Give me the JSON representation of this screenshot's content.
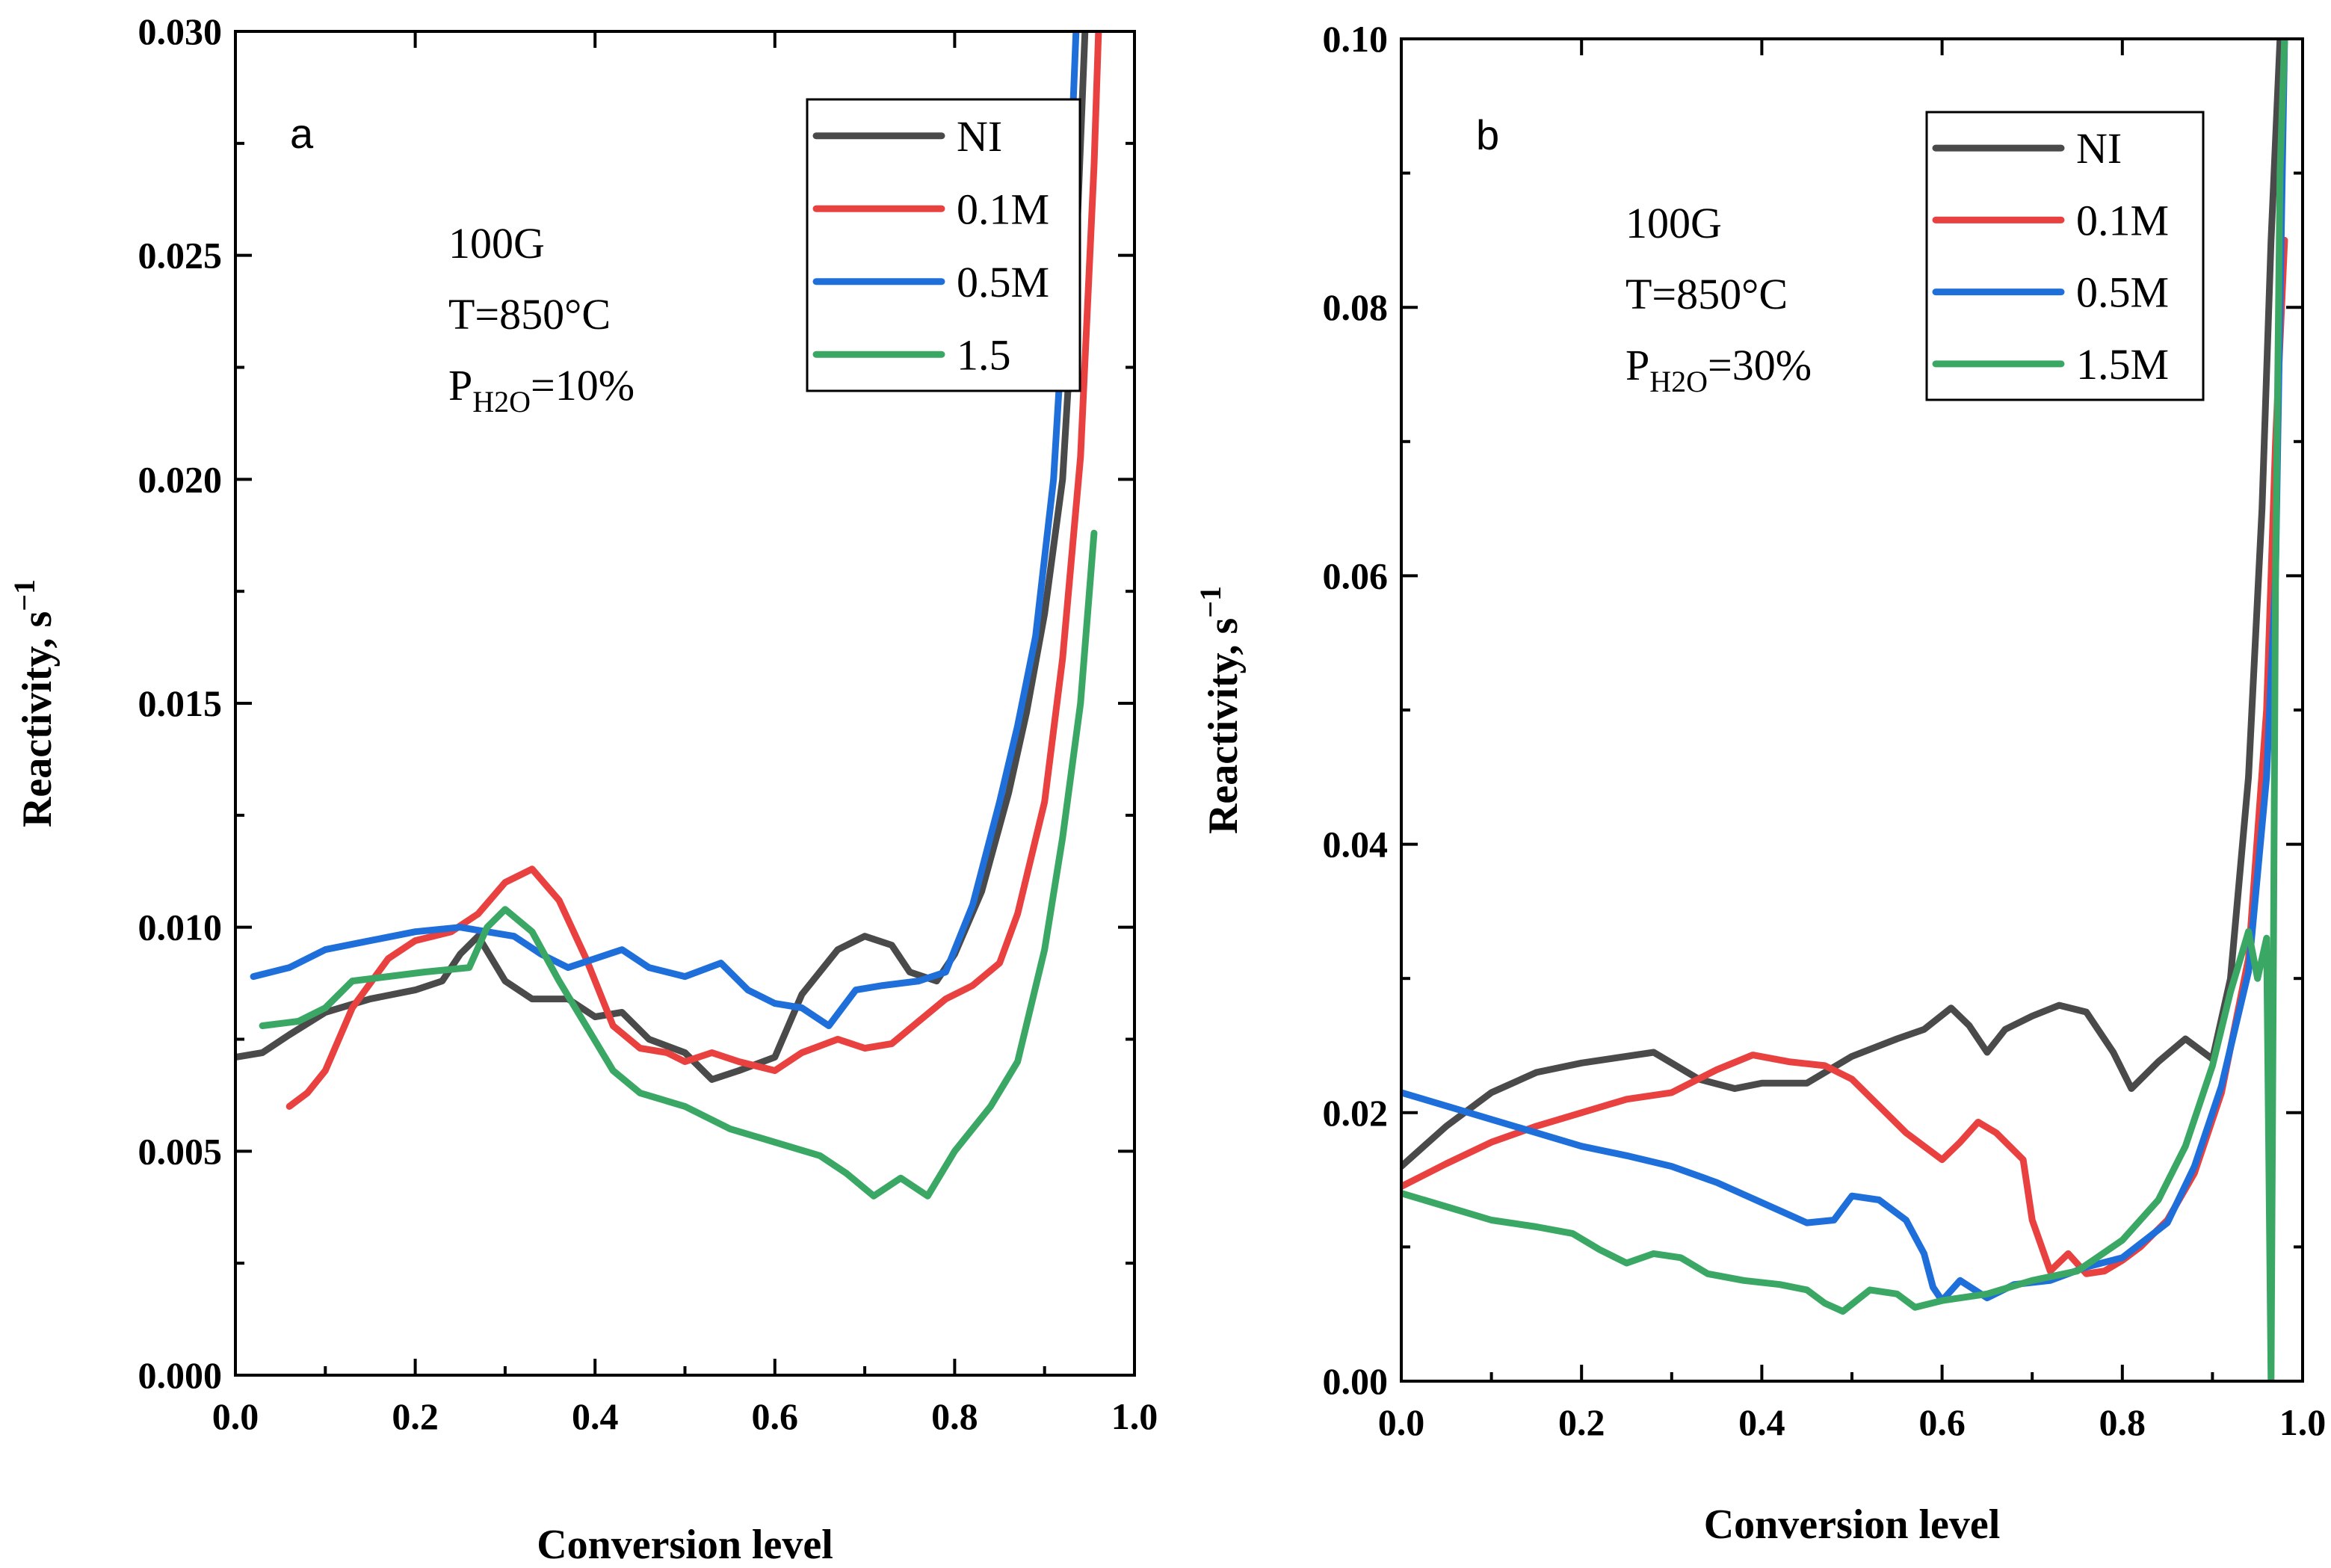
{
  "chart_data": [
    {
      "panel_label": "a",
      "type": "line",
      "xlabel": "Conversion level",
      "ylabel": "Reactivity, s",
      "ylabel_sup": "−1",
      "xlim": [
        0.0,
        1.0
      ],
      "ylim": [
        0.0,
        0.03
      ],
      "x_ticks": [
        "0.0",
        "0.2",
        "0.4",
        "0.6",
        "0.8",
        "1.0"
      ],
      "y_ticks": [
        "0.000",
        "0.005",
        "0.010",
        "0.015",
        "0.020",
        "0.025",
        "0.030"
      ],
      "annotation": {
        "line1": "100G",
        "line2": "T=850°C",
        "line3_main": "P",
        "line3_sub": "H2O",
        "line3_rest": "=10%"
      },
      "legend_position": "top-right",
      "series": [
        {
          "name": "NI",
          "color": "#4a4a4a",
          "points": [
            [
              0.0,
              0.0071
            ],
            [
              0.03,
              0.0072
            ],
            [
              0.06,
              0.0076
            ],
            [
              0.1,
              0.0081
            ],
            [
              0.15,
              0.0084
            ],
            [
              0.2,
              0.0086
            ],
            [
              0.23,
              0.0088
            ],
            [
              0.25,
              0.0094
            ],
            [
              0.27,
              0.0098
            ],
            [
              0.3,
              0.0088
            ],
            [
              0.33,
              0.0084
            ],
            [
              0.37,
              0.0084
            ],
            [
              0.4,
              0.008
            ],
            [
              0.43,
              0.0081
            ],
            [
              0.46,
              0.0075
            ],
            [
              0.5,
              0.0072
            ],
            [
              0.53,
              0.0066
            ],
            [
              0.56,
              0.0068
            ],
            [
              0.6,
              0.0071
            ],
            [
              0.63,
              0.0085
            ],
            [
              0.67,
              0.0095
            ],
            [
              0.7,
              0.0098
            ],
            [
              0.73,
              0.0096
            ],
            [
              0.75,
              0.009
            ],
            [
              0.78,
              0.0088
            ],
            [
              0.8,
              0.0094
            ],
            [
              0.83,
              0.0108
            ],
            [
              0.86,
              0.013
            ],
            [
              0.88,
              0.0148
            ],
            [
              0.9,
              0.017
            ],
            [
              0.92,
              0.02
            ],
            [
              0.935,
              0.025
            ],
            [
              0.945,
              0.03
            ]
          ]
        },
        {
          "name": "0.1M",
          "color": "#e8413f",
          "points": [
            [
              0.06,
              0.006
            ],
            [
              0.08,
              0.0063
            ],
            [
              0.1,
              0.0068
            ],
            [
              0.13,
              0.0082
            ],
            [
              0.17,
              0.0093
            ],
            [
              0.2,
              0.0097
            ],
            [
              0.24,
              0.0099
            ],
            [
              0.27,
              0.0103
            ],
            [
              0.3,
              0.011
            ],
            [
              0.33,
              0.0113
            ],
            [
              0.36,
              0.0106
            ],
            [
              0.39,
              0.0093
            ],
            [
              0.42,
              0.0078
            ],
            [
              0.45,
              0.0073
            ],
            [
              0.48,
              0.0072
            ],
            [
              0.5,
              0.007
            ],
            [
              0.53,
              0.0072
            ],
            [
              0.56,
              0.007
            ],
            [
              0.6,
              0.0068
            ],
            [
              0.63,
              0.0072
            ],
            [
              0.67,
              0.0075
            ],
            [
              0.7,
              0.0073
            ],
            [
              0.73,
              0.0074
            ],
            [
              0.76,
              0.0079
            ],
            [
              0.79,
              0.0084
            ],
            [
              0.82,
              0.0087
            ],
            [
              0.85,
              0.0092
            ],
            [
              0.87,
              0.0103
            ],
            [
              0.9,
              0.0128
            ],
            [
              0.92,
              0.016
            ],
            [
              0.94,
              0.0205
            ],
            [
              0.955,
              0.027
            ],
            [
              0.96,
              0.03
            ]
          ]
        },
        {
          "name": "0.5M",
          "color": "#1f6fdb",
          "points": [
            [
              0.02,
              0.0089
            ],
            [
              0.06,
              0.0091
            ],
            [
              0.1,
              0.0095
            ],
            [
              0.15,
              0.0097
            ],
            [
              0.2,
              0.0099
            ],
            [
              0.25,
              0.01
            ],
            [
              0.28,
              0.0099
            ],
            [
              0.31,
              0.0098
            ],
            [
              0.34,
              0.0094
            ],
            [
              0.37,
              0.0091
            ],
            [
              0.4,
              0.0093
            ],
            [
              0.43,
              0.0095
            ],
            [
              0.46,
              0.0091
            ],
            [
              0.5,
              0.0089
            ],
            [
              0.54,
              0.0092
            ],
            [
              0.57,
              0.0086
            ],
            [
              0.6,
              0.0083
            ],
            [
              0.63,
              0.0082
            ],
            [
              0.66,
              0.0078
            ],
            [
              0.69,
              0.0086
            ],
            [
              0.72,
              0.0087
            ],
            [
              0.76,
              0.0088
            ],
            [
              0.79,
              0.009
            ],
            [
              0.82,
              0.0105
            ],
            [
              0.85,
              0.0128
            ],
            [
              0.87,
              0.0145
            ],
            [
              0.89,
              0.0165
            ],
            [
              0.91,
              0.02
            ],
            [
              0.925,
              0.025
            ],
            [
              0.935,
              0.03
            ]
          ]
        },
        {
          "name": "1.5",
          "color": "#3aa864",
          "points": [
            [
              0.03,
              0.0078
            ],
            [
              0.07,
              0.0079
            ],
            [
              0.1,
              0.0082
            ],
            [
              0.13,
              0.0088
            ],
            [
              0.17,
              0.0089
            ],
            [
              0.21,
              0.009
            ],
            [
              0.26,
              0.0091
            ],
            [
              0.28,
              0.01
            ],
            [
              0.3,
              0.0104
            ],
            [
              0.33,
              0.0099
            ],
            [
              0.36,
              0.0088
            ],
            [
              0.39,
              0.0078
            ],
            [
              0.42,
              0.0068
            ],
            [
              0.45,
              0.0063
            ],
            [
              0.5,
              0.006
            ],
            [
              0.55,
              0.0055
            ],
            [
              0.6,
              0.0052
            ],
            [
              0.65,
              0.0049
            ],
            [
              0.68,
              0.0045
            ],
            [
              0.71,
              0.004
            ],
            [
              0.74,
              0.0044
            ],
            [
              0.77,
              0.004
            ],
            [
              0.8,
              0.005
            ],
            [
              0.84,
              0.006
            ],
            [
              0.87,
              0.007
            ],
            [
              0.9,
              0.0095
            ],
            [
              0.92,
              0.012
            ],
            [
              0.94,
              0.015
            ],
            [
              0.955,
              0.0188
            ]
          ]
        }
      ]
    },
    {
      "panel_label": "b",
      "type": "line",
      "xlabel": "Conversion level",
      "ylabel": "Reactivity, s",
      "ylabel_sup": "−1",
      "xlim": [
        0.0,
        1.0
      ],
      "ylim": [
        0.0,
        0.1
      ],
      "x_ticks": [
        "0.0",
        "0.2",
        "0.4",
        "0.6",
        "0.8",
        "1.0"
      ],
      "y_ticks": [
        "0.00",
        "0.02",
        "0.04",
        "0.06",
        "0.08",
        "0.10"
      ],
      "annotation": {
        "line1": "100G",
        "line2": "T=850°C",
        "line3_main": "P",
        "line3_sub": "H2O",
        "line3_rest": "=30%"
      },
      "legend_position": "top-right",
      "series": [
        {
          "name": "NI",
          "color": "#4a4a4a",
          "points": [
            [
              0.0,
              0.016
            ],
            [
              0.05,
              0.019
            ],
            [
              0.1,
              0.0215
            ],
            [
              0.15,
              0.023
            ],
            [
              0.2,
              0.0237
            ],
            [
              0.28,
              0.0245
            ],
            [
              0.33,
              0.0225
            ],
            [
              0.37,
              0.0218
            ],
            [
              0.4,
              0.0222
            ],
            [
              0.45,
              0.0222
            ],
            [
              0.5,
              0.0242
            ],
            [
              0.55,
              0.0255
            ],
            [
              0.58,
              0.0262
            ],
            [
              0.61,
              0.0278
            ],
            [
              0.63,
              0.0265
            ],
            [
              0.65,
              0.0245
            ],
            [
              0.67,
              0.0262
            ],
            [
              0.7,
              0.0272
            ],
            [
              0.73,
              0.028
            ],
            [
              0.76,
              0.0275
            ],
            [
              0.79,
              0.0245
            ],
            [
              0.81,
              0.0218
            ],
            [
              0.84,
              0.0238
            ],
            [
              0.87,
              0.0255
            ],
            [
              0.9,
              0.024
            ],
            [
              0.92,
              0.03
            ],
            [
              0.94,
              0.045
            ],
            [
              0.955,
              0.065
            ],
            [
              0.965,
              0.085
            ],
            [
              0.975,
              0.1
            ]
          ]
        },
        {
          "name": "0.1M",
          "color": "#e8413f",
          "points": [
            [
              0.0,
              0.0145
            ],
            [
              0.05,
              0.0162
            ],
            [
              0.1,
              0.0178
            ],
            [
              0.15,
              0.019
            ],
            [
              0.2,
              0.02
            ],
            [
              0.25,
              0.021
            ],
            [
              0.3,
              0.0215
            ],
            [
              0.35,
              0.0232
            ],
            [
              0.39,
              0.0243
            ],
            [
              0.43,
              0.0238
            ],
            [
              0.47,
              0.0235
            ],
            [
              0.5,
              0.0225
            ],
            [
              0.53,
              0.0205
            ],
            [
              0.56,
              0.0185
            ],
            [
              0.6,
              0.0165
            ],
            [
              0.62,
              0.0178
            ],
            [
              0.64,
              0.0193
            ],
            [
              0.66,
              0.0185
            ],
            [
              0.69,
              0.0165
            ],
            [
              0.7,
              0.012
            ],
            [
              0.72,
              0.0082
            ],
            [
              0.74,
              0.0095
            ],
            [
              0.76,
              0.008
            ],
            [
              0.78,
              0.0082
            ],
            [
              0.8,
              0.009
            ],
            [
              0.82,
              0.01
            ],
            [
              0.85,
              0.012
            ],
            [
              0.88,
              0.0155
            ],
            [
              0.91,
              0.0215
            ],
            [
              0.94,
              0.0315
            ],
            [
              0.96,
              0.05
            ],
            [
              0.97,
              0.07
            ],
            [
              0.98,
              0.085
            ]
          ]
        },
        {
          "name": "0.5M",
          "color": "#1f6fdb",
          "points": [
            [
              0.0,
              0.0215
            ],
            [
              0.05,
              0.0205
            ],
            [
              0.1,
              0.0195
            ],
            [
              0.15,
              0.0185
            ],
            [
              0.2,
              0.0175
            ],
            [
              0.25,
              0.0168
            ],
            [
              0.3,
              0.016
            ],
            [
              0.35,
              0.0148
            ],
            [
              0.4,
              0.0133
            ],
            [
              0.45,
              0.0118
            ],
            [
              0.48,
              0.012
            ],
            [
              0.5,
              0.0138
            ],
            [
              0.53,
              0.0135
            ],
            [
              0.56,
              0.012
            ],
            [
              0.58,
              0.0095
            ],
            [
              0.59,
              0.007
            ],
            [
              0.6,
              0.006
            ],
            [
              0.62,
              0.0075
            ],
            [
              0.65,
              0.0062
            ],
            [
              0.68,
              0.0072
            ],
            [
              0.72,
              0.0075
            ],
            [
              0.76,
              0.0085
            ],
            [
              0.8,
              0.0092
            ],
            [
              0.85,
              0.0118
            ],
            [
              0.88,
              0.016
            ],
            [
              0.91,
              0.022
            ],
            [
              0.94,
              0.0305
            ],
            [
              0.96,
              0.045
            ],
            [
              0.97,
              0.06
            ],
            [
              0.975,
              0.08
            ],
            [
              0.98,
              0.1
            ]
          ]
        },
        {
          "name": "1.5M",
          "color": "#3aa864",
          "points": [
            [
              0.0,
              0.014
            ],
            [
              0.05,
              0.013
            ],
            [
              0.1,
              0.012
            ],
            [
              0.15,
              0.0115
            ],
            [
              0.19,
              0.011
            ],
            [
              0.22,
              0.0098
            ],
            [
              0.25,
              0.0088
            ],
            [
              0.28,
              0.0095
            ],
            [
              0.31,
              0.0092
            ],
            [
              0.34,
              0.008
            ],
            [
              0.38,
              0.0075
            ],
            [
              0.42,
              0.0072
            ],
            [
              0.45,
              0.0068
            ],
            [
              0.47,
              0.0058
            ],
            [
              0.49,
              0.0052
            ],
            [
              0.52,
              0.0068
            ],
            [
              0.55,
              0.0065
            ],
            [
              0.57,
              0.0055
            ],
            [
              0.6,
              0.006
            ],
            [
              0.65,
              0.0065
            ],
            [
              0.7,
              0.0075
            ],
            [
              0.75,
              0.0082
            ],
            [
              0.8,
              0.0105
            ],
            [
              0.84,
              0.0135
            ],
            [
              0.87,
              0.0175
            ],
            [
              0.9,
              0.0235
            ],
            [
              0.92,
              0.029
            ],
            [
              0.94,
              0.0335
            ],
            [
              0.95,
              0.03
            ],
            [
              0.96,
              0.033
            ],
            [
              0.965,
              0.0
            ],
            [
              0.97,
              0.06
            ],
            [
              0.975,
              0.09
            ],
            [
              0.98,
              0.1
            ]
          ]
        }
      ]
    }
  ]
}
